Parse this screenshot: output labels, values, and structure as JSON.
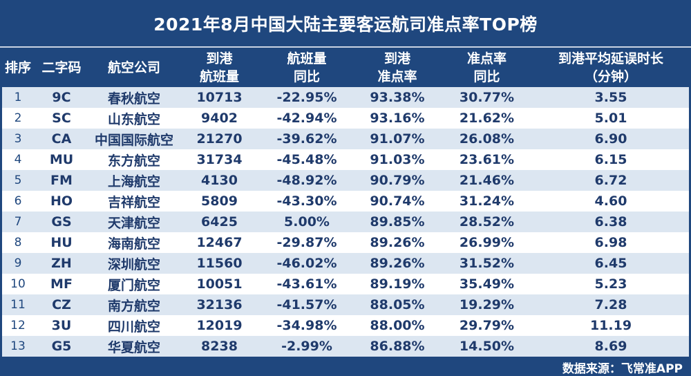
{
  "title": "2021年8月中国大陆主要客运航司准点率TOP榜",
  "columns": [
    "排序",
    "二字码",
    "航空公司",
    "到港\n航班量",
    "航班量\n同比",
    "到港\n准点率",
    "准点率\n同比",
    "到港平均延误时长\n（分钟）"
  ],
  "rows": [
    [
      "1",
      "9C",
      "春秋航空",
      "10713",
      "-22.95%",
      "93.38%",
      "30.77%",
      "3.55"
    ],
    [
      "2",
      "SC",
      "山东航空",
      "9402",
      "-42.94%",
      "93.16%",
      "21.62%",
      "5.01"
    ],
    [
      "3",
      "CA",
      "中国国际航空",
      "21270",
      "-39.62%",
      "91.07%",
      "26.08%",
      "6.90"
    ],
    [
      "4",
      "MU",
      "东方航空",
      "31734",
      "-45.48%",
      "91.03%",
      "23.61%",
      "6.15"
    ],
    [
      "5",
      "FM",
      "上海航空",
      "4130",
      "-48.92%",
      "90.79%",
      "21.46%",
      "6.72"
    ],
    [
      "6",
      "HO",
      "吉祥航空",
      "5809",
      "-43.30%",
      "90.74%",
      "31.24%",
      "4.60"
    ],
    [
      "7",
      "GS",
      "天津航空",
      "6425",
      "5.00%",
      "89.85%",
      "28.52%",
      "6.38"
    ],
    [
      "8",
      "HU",
      "海南航空",
      "12467",
      "-29.87%",
      "89.26%",
      "26.99%",
      "6.98"
    ],
    [
      "9",
      "ZH",
      "深圳航空",
      "11560",
      "-46.02%",
      "89.26%",
      "31.52%",
      "6.45"
    ],
    [
      "10",
      "MF",
      "厦门航空",
      "10051",
      "-43.61%",
      "89.19%",
      "35.49%",
      "5.23"
    ],
    [
      "11",
      "CZ",
      "南方航空",
      "32136",
      "-41.57%",
      "88.05%",
      "19.29%",
      "7.28"
    ],
    [
      "12",
      "3U",
      "四川航空",
      "12019",
      "-34.98%",
      "88.00%",
      "29.79%",
      "11.19"
    ],
    [
      "13",
      "G5",
      "华夏航空",
      "8238",
      "-2.99%",
      "86.88%",
      "14.50%",
      "8.69"
    ]
  ],
  "source": "数据来源：飞常准APP",
  "colors": {
    "header_bg": "#1f477e",
    "stripe": "#dce6f1",
    "text": "#1f3a6b"
  },
  "chart_data": {
    "type": "table",
    "title": "2021年8月中国大陆主要客运航司准点率TOP榜",
    "columns": [
      "排序",
      "二字码",
      "航空公司",
      "到港航班量",
      "航班量同比",
      "到港准点率",
      "准点率同比",
      "到港平均延误时长（分钟）"
    ],
    "rows": [
      [
        1,
        "9C",
        "春秋航空",
        10713,
        "-22.95%",
        "93.38%",
        "30.77%",
        3.55
      ],
      [
        2,
        "SC",
        "山东航空",
        9402,
        "-42.94%",
        "93.16%",
        "21.62%",
        5.01
      ],
      [
        3,
        "CA",
        "中国国际航空",
        21270,
        "-39.62%",
        "91.07%",
        "26.08%",
        6.9
      ],
      [
        4,
        "MU",
        "东方航空",
        31734,
        "-45.48%",
        "91.03%",
        "23.61%",
        6.15
      ],
      [
        5,
        "FM",
        "上海航空",
        4130,
        "-48.92%",
        "90.79%",
        "21.46%",
        6.72
      ],
      [
        6,
        "HO",
        "吉祥航空",
        5809,
        "-43.30%",
        "90.74%",
        "31.24%",
        4.6
      ],
      [
        7,
        "GS",
        "天津航空",
        6425,
        "5.00%",
        "89.85%",
        "28.52%",
        6.38
      ],
      [
        8,
        "HU",
        "海南航空",
        12467,
        "-29.87%",
        "89.26%",
        "26.99%",
        6.98
      ],
      [
        9,
        "ZH",
        "深圳航空",
        11560,
        "-46.02%",
        "89.26%",
        "31.52%",
        6.45
      ],
      [
        10,
        "MF",
        "厦门航空",
        10051,
        "-43.61%",
        "89.19%",
        "35.49%",
        5.23
      ],
      [
        11,
        "CZ",
        "南方航空",
        32136,
        "-41.57%",
        "88.05%",
        "19.29%",
        7.28
      ],
      [
        12,
        "3U",
        "四川航空",
        12019,
        "-34.98%",
        "88.00%",
        "29.79%",
        11.19
      ],
      [
        13,
        "G5",
        "华夏航空",
        8238,
        "-2.99%",
        "86.88%",
        "14.50%",
        8.69
      ]
    ]
  }
}
